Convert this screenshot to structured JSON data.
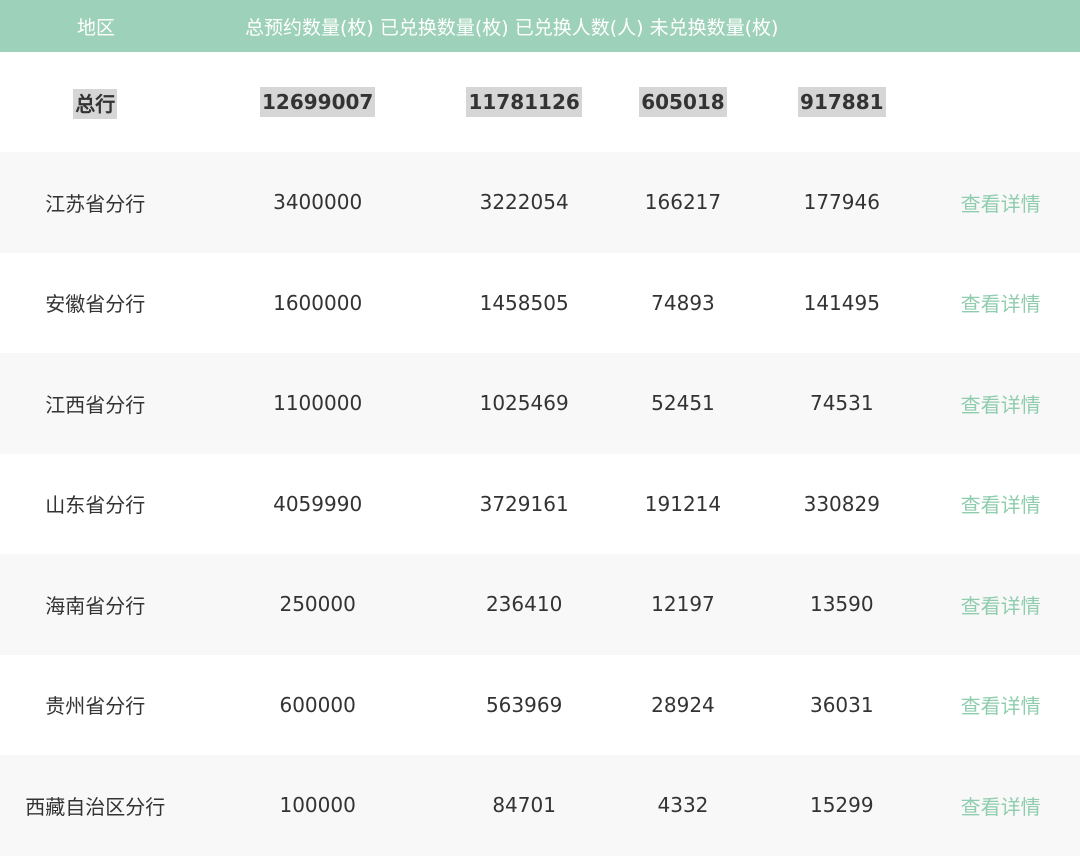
{
  "header": {
    "columns": [
      "地区",
      "总预约数量(枚)",
      "已兑换数量(枚)",
      "已兑换人数(人)",
      "未兑换数量(枚)"
    ]
  },
  "total": {
    "region": "总行",
    "reserved": "12699007",
    "exchanged": "11781126",
    "people": "605018",
    "unexchanged": "917881"
  },
  "rows": [
    {
      "region": "江苏省分行",
      "reserved": "3400000",
      "exchanged": "3222054",
      "people": "166217",
      "unexchanged": "177946",
      "action": "查看详情"
    },
    {
      "region": "安徽省分行",
      "reserved": "1600000",
      "exchanged": "1458505",
      "people": "74893",
      "unexchanged": "141495",
      "action": "查看详情"
    },
    {
      "region": "江西省分行",
      "reserved": "1100000",
      "exchanged": "1025469",
      "people": "52451",
      "unexchanged": "74531",
      "action": "查看详情"
    },
    {
      "region": "山东省分行",
      "reserved": "4059990",
      "exchanged": "3729161",
      "people": "191214",
      "unexchanged": "330829",
      "action": "查看详情"
    },
    {
      "region": "海南省分行",
      "reserved": "250000",
      "exchanged": "236410",
      "people": "12197",
      "unexchanged": "13590",
      "action": "查看详情"
    },
    {
      "region": "贵州省分行",
      "reserved": "600000",
      "exchanged": "563969",
      "people": "28924",
      "unexchanged": "36031",
      "action": "查看详情"
    },
    {
      "region": "西藏自治区分行",
      "reserved": "100000",
      "exchanged": "84701",
      "people": "4332",
      "unexchanged": "15299",
      "action": "查看详情"
    }
  ],
  "colors": {
    "header_bg": "#9dd1b9",
    "link": "#8fcdae",
    "stripe": "#f8f8f9",
    "highlight": "#d6d6d6"
  }
}
